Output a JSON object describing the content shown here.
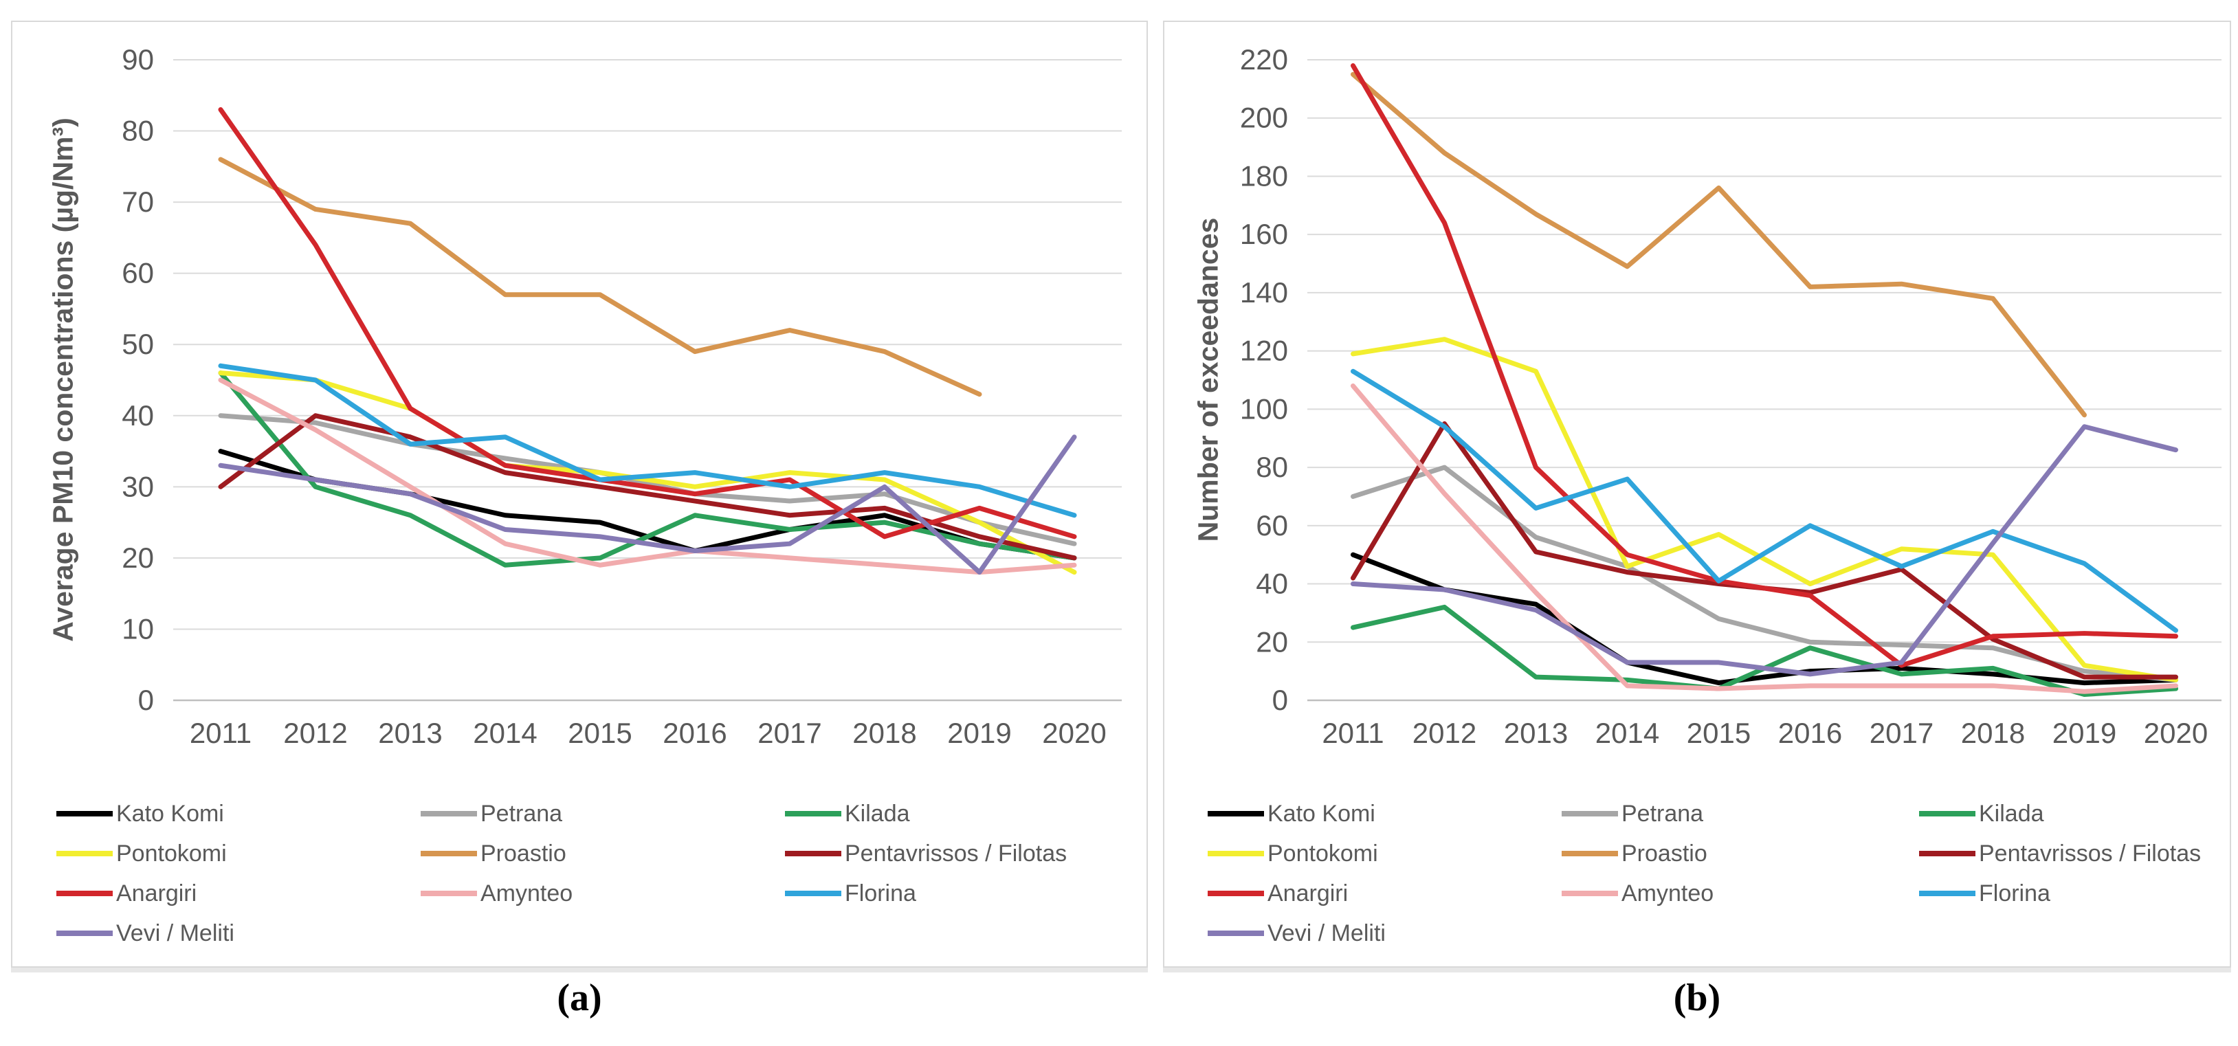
{
  "figure": {
    "caption_a": "(a)",
    "caption_b": "(b)"
  },
  "colors": {
    "kato_komi": "#000000",
    "petrana": "#a6a6a6",
    "kilada": "#2ca05a",
    "pontokomi": "#f2ee2f",
    "proastio": "#d6954f",
    "pentavrissos": "#9e1b20",
    "anargiri": "#d2262b",
    "amynteo": "#f1abad",
    "florina": "#2fa4db",
    "vevi": "#8579b4",
    "gridline": "#dbdbdb",
    "axis_line": "#bfbfbf",
    "text": "#595959"
  },
  "legend_rows": [
    [
      "Kato Komi",
      "Petrana",
      "Kilada"
    ],
    [
      "Pontokomi",
      "Proastio",
      "Pentavrissos / Filotas"
    ],
    [
      "Anargiri",
      "Amynteo",
      "Florina"
    ],
    [
      "Vevi / Meliti"
    ]
  ],
  "chart_data": [
    {
      "id": "a",
      "type": "line",
      "title": "",
      "ylabel": "Average PM10 concentrations (µg/Nm³)",
      "xlabel": "",
      "categories": [
        "2011",
        "2012",
        "2013",
        "2014",
        "2015",
        "2016",
        "2017",
        "2018",
        "2019",
        "2020"
      ],
      "ylim": [
        0,
        90
      ],
      "yticks": [
        0,
        10,
        20,
        30,
        40,
        50,
        60,
        70,
        80,
        90
      ],
      "grid": true,
      "legend_position": "bottom",
      "series": [
        {
          "name": "Kato Komi",
          "color_key": "kato_komi",
          "values": [
            35,
            31,
            29,
            26,
            25,
            21,
            24,
            26,
            22,
            20
          ]
        },
        {
          "name": "Petrana",
          "color_key": "petrana",
          "values": [
            40,
            39,
            36,
            34,
            32,
            29,
            28,
            29,
            25,
            22
          ]
        },
        {
          "name": "Kilada",
          "color_key": "kilada",
          "values": [
            46,
            30,
            26,
            19,
            20,
            26,
            24,
            25,
            22,
            20
          ]
        },
        {
          "name": "Pontokomi",
          "color_key": "pontokomi",
          "values": [
            46,
            45,
            41,
            33,
            32,
            30,
            32,
            31,
            25,
            18
          ]
        },
        {
          "name": "Proastio",
          "color_key": "proastio",
          "values": [
            76,
            69,
            67,
            57,
            57,
            49,
            52,
            49,
            43,
            null
          ]
        },
        {
          "name": "Pentavrissos / Filotas",
          "color_key": "pentavrissos",
          "values": [
            30,
            40,
            37,
            32,
            30,
            28,
            26,
            27,
            23,
            20
          ]
        },
        {
          "name": "Anargiri",
          "color_key": "anargiri",
          "values": [
            83,
            64,
            41,
            33,
            31,
            29,
            31,
            23,
            27,
            23
          ]
        },
        {
          "name": "Amynteo",
          "color_key": "amynteo",
          "values": [
            45,
            38,
            30,
            22,
            19,
            21,
            20,
            19,
            18,
            19
          ]
        },
        {
          "name": "Florina",
          "color_key": "florina",
          "values": [
            47,
            45,
            36,
            37,
            31,
            32,
            30,
            32,
            30,
            26
          ]
        },
        {
          "name": "Vevi / Meliti",
          "color_key": "vevi",
          "values": [
            33,
            31,
            29,
            24,
            23,
            21,
            22,
            30,
            18,
            37
          ]
        }
      ]
    },
    {
      "id": "b",
      "type": "line",
      "title": "",
      "ylabel": "Number of exceedances",
      "xlabel": "",
      "categories": [
        "2011",
        "2012",
        "2013",
        "2014",
        "2015",
        "2016",
        "2017",
        "2018",
        "2019",
        "2020"
      ],
      "ylim": [
        0,
        220
      ],
      "yticks": [
        0,
        20,
        40,
        60,
        80,
        100,
        120,
        140,
        160,
        180,
        200,
        220
      ],
      "grid": true,
      "legend_position": "bottom",
      "series": [
        {
          "name": "Kato Komi",
          "color_key": "kato_komi",
          "values": [
            50,
            38,
            33,
            13,
            6,
            10,
            11,
            9,
            6,
            7
          ]
        },
        {
          "name": "Petrana",
          "color_key": "petrana",
          "values": [
            70,
            80,
            56,
            46,
            28,
            20,
            19,
            18,
            10,
            7
          ]
        },
        {
          "name": "Kilada",
          "color_key": "kilada",
          "values": [
            25,
            32,
            8,
            7,
            4,
            18,
            9,
            11,
            2,
            4
          ]
        },
        {
          "name": "Pontokomi",
          "color_key": "pontokomi",
          "values": [
            119,
            124,
            113,
            46,
            57,
            40,
            52,
            50,
            12,
            7
          ]
        },
        {
          "name": "Proastio",
          "color_key": "proastio",
          "values": [
            215,
            188,
            167,
            149,
            176,
            142,
            143,
            138,
            98,
            null
          ]
        },
        {
          "name": "Pentavrissos / Filotas",
          "color_key": "pentavrissos",
          "values": [
            42,
            95,
            51,
            44,
            40,
            37,
            45,
            21,
            8,
            8
          ]
        },
        {
          "name": "Anargiri",
          "color_key": "anargiri",
          "values": [
            218,
            164,
            80,
            50,
            41,
            36,
            12,
            22,
            23,
            22
          ]
        },
        {
          "name": "Amynteo",
          "color_key": "amynteo",
          "values": [
            108,
            71,
            37,
            5,
            4,
            5,
            5,
            5,
            3,
            5
          ]
        },
        {
          "name": "Florina",
          "color_key": "florina",
          "values": [
            113,
            94,
            66,
            76,
            41,
            60,
            46,
            58,
            47,
            24
          ]
        },
        {
          "name": "Vevi / Meliti",
          "color_key": "vevi",
          "values": [
            40,
            38,
            31,
            13,
            13,
            9,
            13,
            54,
            94,
            86
          ]
        }
      ]
    }
  ]
}
